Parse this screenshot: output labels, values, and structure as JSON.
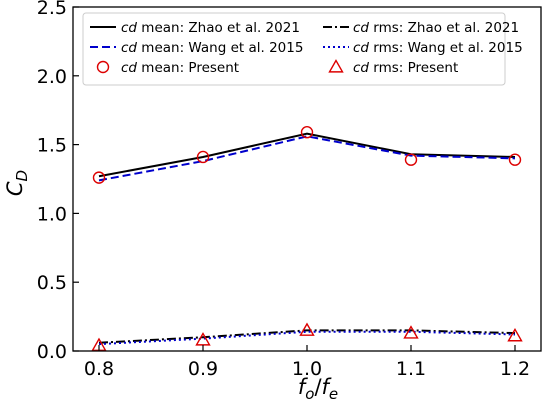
{
  "chart_data": {
    "type": "line",
    "x": [
      0.8,
      0.9,
      1.0,
      1.1,
      1.2
    ],
    "xlim": [
      0.775,
      1.225
    ],
    "ylim": [
      0.0,
      2.5
    ],
    "xticks": [
      "0.8",
      "0.9",
      "1.0",
      "1.1",
      "1.2"
    ],
    "yticks": [
      "0.0",
      "0.5",
      "1.0",
      "1.5",
      "2.0",
      "2.5"
    ],
    "xlabel": {
      "base1": "f",
      "sub1": "o",
      "slash": "/",
      "base2": "f",
      "sub2": "e"
    },
    "ylabel": {
      "base": "C",
      "sub": "D"
    },
    "grid": false,
    "legend_position": "top",
    "series": [
      {
        "name": "mean: Zhao et al. 2021",
        "prefix": "cd",
        "values": [
          1.27,
          1.41,
          1.58,
          1.43,
          1.41
        ],
        "color": "#000000",
        "style": "solid",
        "marker": "none"
      },
      {
        "name": "mean: Wang et al. 2015",
        "prefix": "cd",
        "values": [
          1.24,
          1.38,
          1.56,
          1.42,
          1.4
        ],
        "color": "#0000cc",
        "style": "dashed",
        "marker": "none"
      },
      {
        "name": "mean: Present",
        "prefix": "cd",
        "values": [
          1.26,
          1.41,
          1.59,
          1.39,
          1.39
        ],
        "color": "#dd0000",
        "style": "none",
        "marker": "circle"
      },
      {
        "name": "rms: Zhao et al. 2021",
        "prefix": "cd",
        "values": [
          0.06,
          0.1,
          0.15,
          0.15,
          0.13
        ],
        "color": "#000000",
        "style": "dashdot",
        "marker": "none"
      },
      {
        "name": "rms: Wang et al. 2015",
        "prefix": "cd",
        "values": [
          0.05,
          0.09,
          0.14,
          0.14,
          0.12
        ],
        "color": "#0000cc",
        "style": "dotted",
        "marker": "none"
      },
      {
        "name": "rms: Present",
        "prefix": "cd",
        "values": [
          0.04,
          0.08,
          0.15,
          0.13,
          0.11
        ],
        "color": "#dd0000",
        "style": "none",
        "marker": "triangle"
      }
    ]
  }
}
